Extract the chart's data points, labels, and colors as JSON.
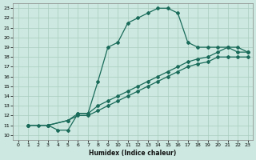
{
  "xlabel": "Humidex (Indice chaleur)",
  "bg_color": "#cce8e0",
  "grid_color": "#aaccbf",
  "line_color": "#1a6b5a",
  "xlim": [
    -0.5,
    23.5
  ],
  "ylim": [
    9.5,
    23.5
  ],
  "xticks": [
    0,
    1,
    2,
    3,
    4,
    5,
    6,
    7,
    8,
    9,
    10,
    11,
    12,
    13,
    14,
    15,
    16,
    17,
    18,
    19,
    20,
    21,
    22,
    23
  ],
  "yticks": [
    10,
    11,
    12,
    13,
    14,
    15,
    16,
    17,
    18,
    19,
    20,
    21,
    22,
    23
  ],
  "line1_x": [
    1,
    2,
    3,
    4,
    5,
    6,
    7,
    8,
    9,
    10,
    11,
    12,
    13,
    14,
    15,
    16,
    17,
    18,
    19,
    20,
    21,
    22,
    23
  ],
  "line1_y": [
    11,
    11,
    11,
    10.5,
    10.5,
    12.2,
    12.2,
    15.5,
    19,
    19.5,
    21.5,
    22,
    22.5,
    23,
    23,
    22.5,
    19.5,
    19,
    19,
    19,
    19,
    18.5,
    18.5
  ],
  "line2_x": [
    1,
    3,
    5,
    6,
    7,
    8,
    9,
    10,
    11,
    12,
    13,
    14,
    15,
    16,
    17,
    18,
    19,
    20,
    21,
    22,
    23
  ],
  "line2_y": [
    11,
    11,
    11.5,
    12.2,
    12.2,
    13,
    13.5,
    14,
    14.5,
    15,
    15.5,
    16,
    16.5,
    17,
    17.5,
    17.8,
    18,
    18.5,
    19,
    19,
    18.5
  ],
  "line3_x": [
    1,
    3,
    5,
    6,
    7,
    8,
    9,
    10,
    11,
    12,
    13,
    14,
    15,
    16,
    17,
    18,
    19,
    20,
    21,
    22,
    23
  ],
  "line3_y": [
    11,
    11,
    11.5,
    12,
    12,
    12.5,
    13,
    13.5,
    14,
    14.5,
    15,
    15.5,
    16,
    16.5,
    17,
    17.3,
    17.5,
    18,
    18,
    18,
    18
  ]
}
